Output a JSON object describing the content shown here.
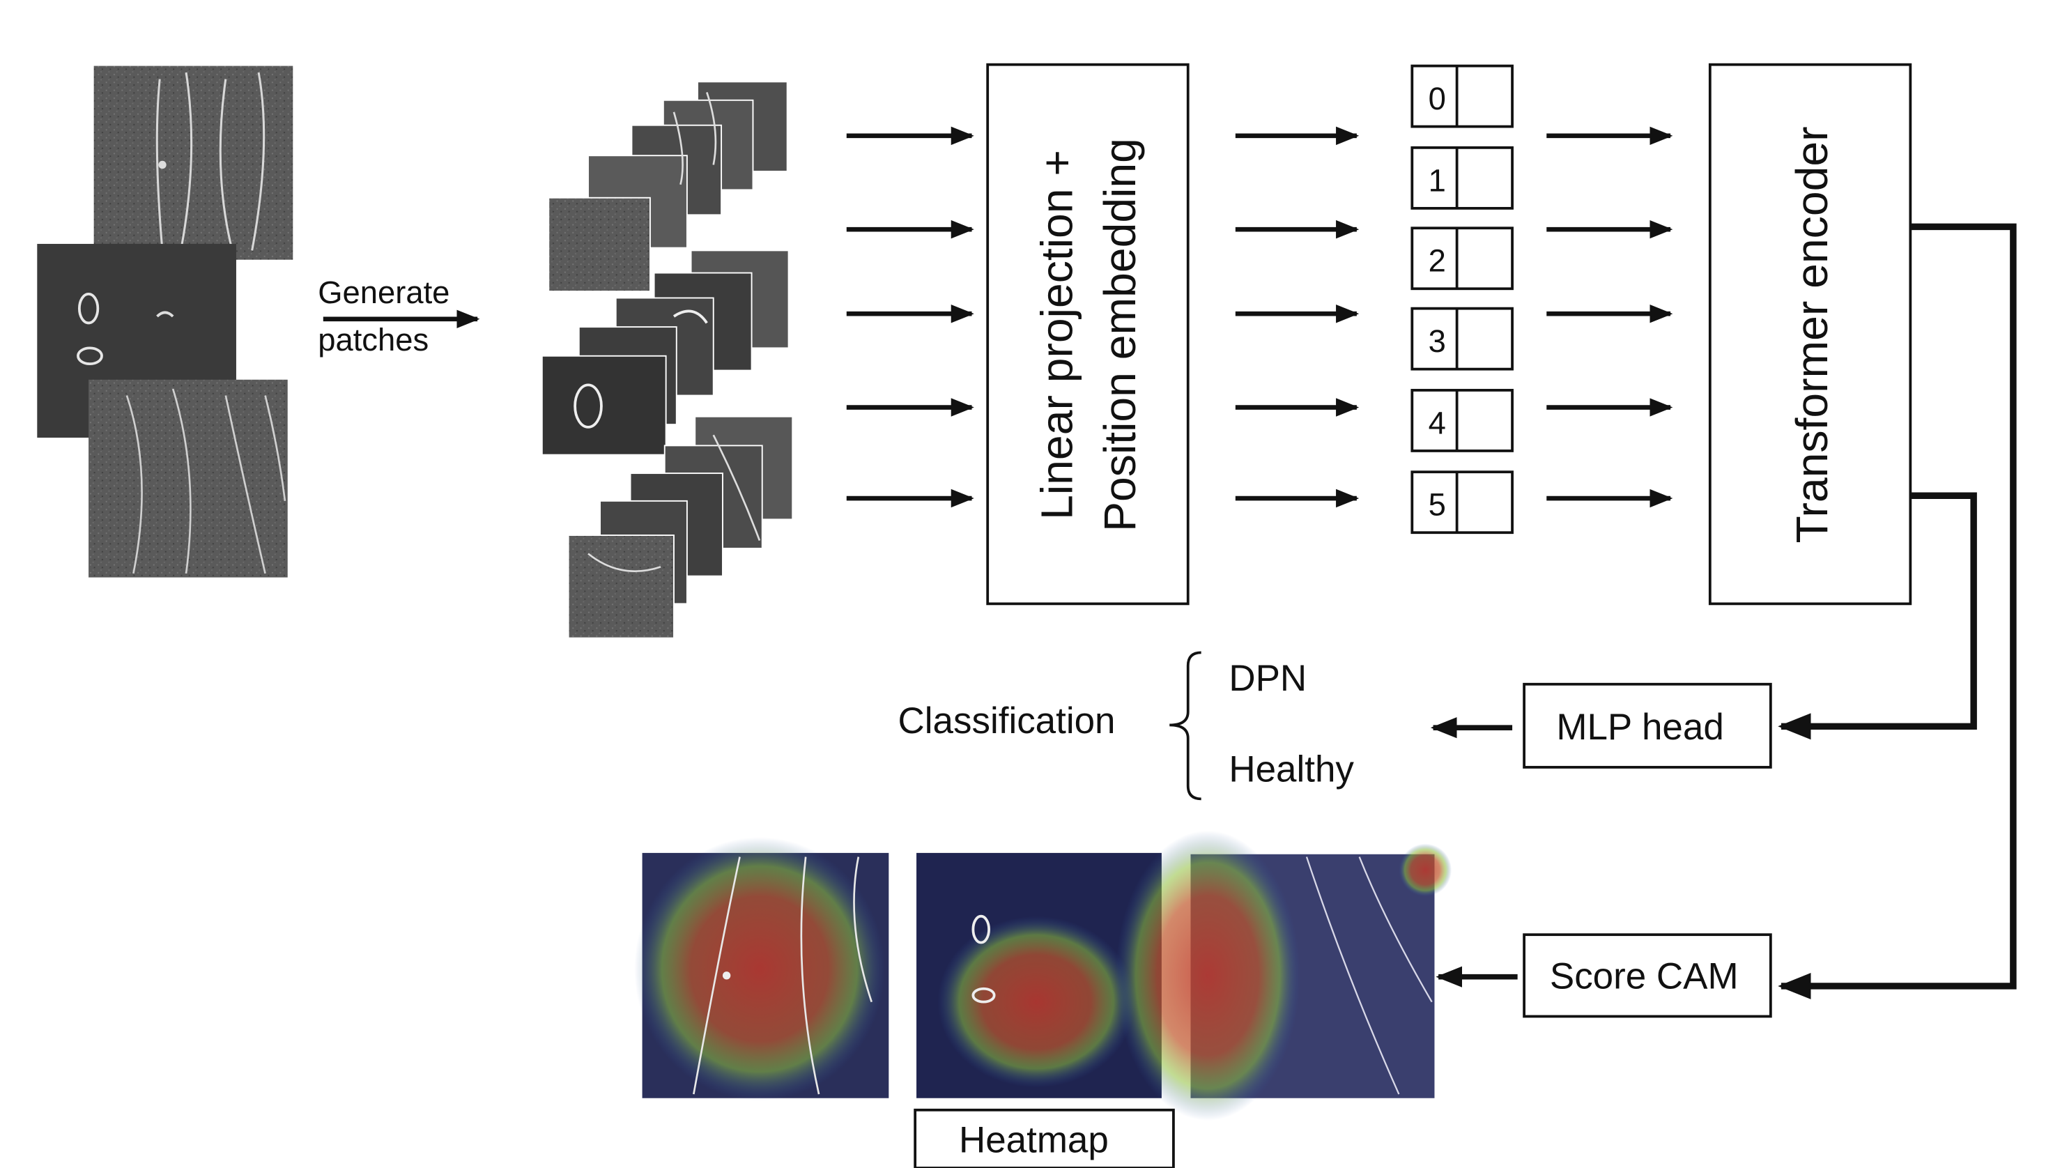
{
  "input_label": {
    "line1": "Generate",
    "line2": "patches"
  },
  "projection_box": {
    "line1": "Linear projection +",
    "line2": "Position embedding"
  },
  "tokens": [
    "0",
    "1",
    "2",
    "3",
    "4",
    "5"
  ],
  "encoder_box": {
    "label": "Transformer encoder"
  },
  "mlp_box": {
    "label": "MLP head"
  },
  "scorecam_box": {
    "label": "Score CAM"
  },
  "classification": {
    "label": "Classification",
    "classes": [
      "DPN",
      "Healthy"
    ]
  },
  "heatmap_box": {
    "label": "Heatmap"
  },
  "colors": {
    "stroke": "#111111",
    "image_base": "#5a5a5a",
    "heatmap_bg": "#2a2f5a"
  }
}
